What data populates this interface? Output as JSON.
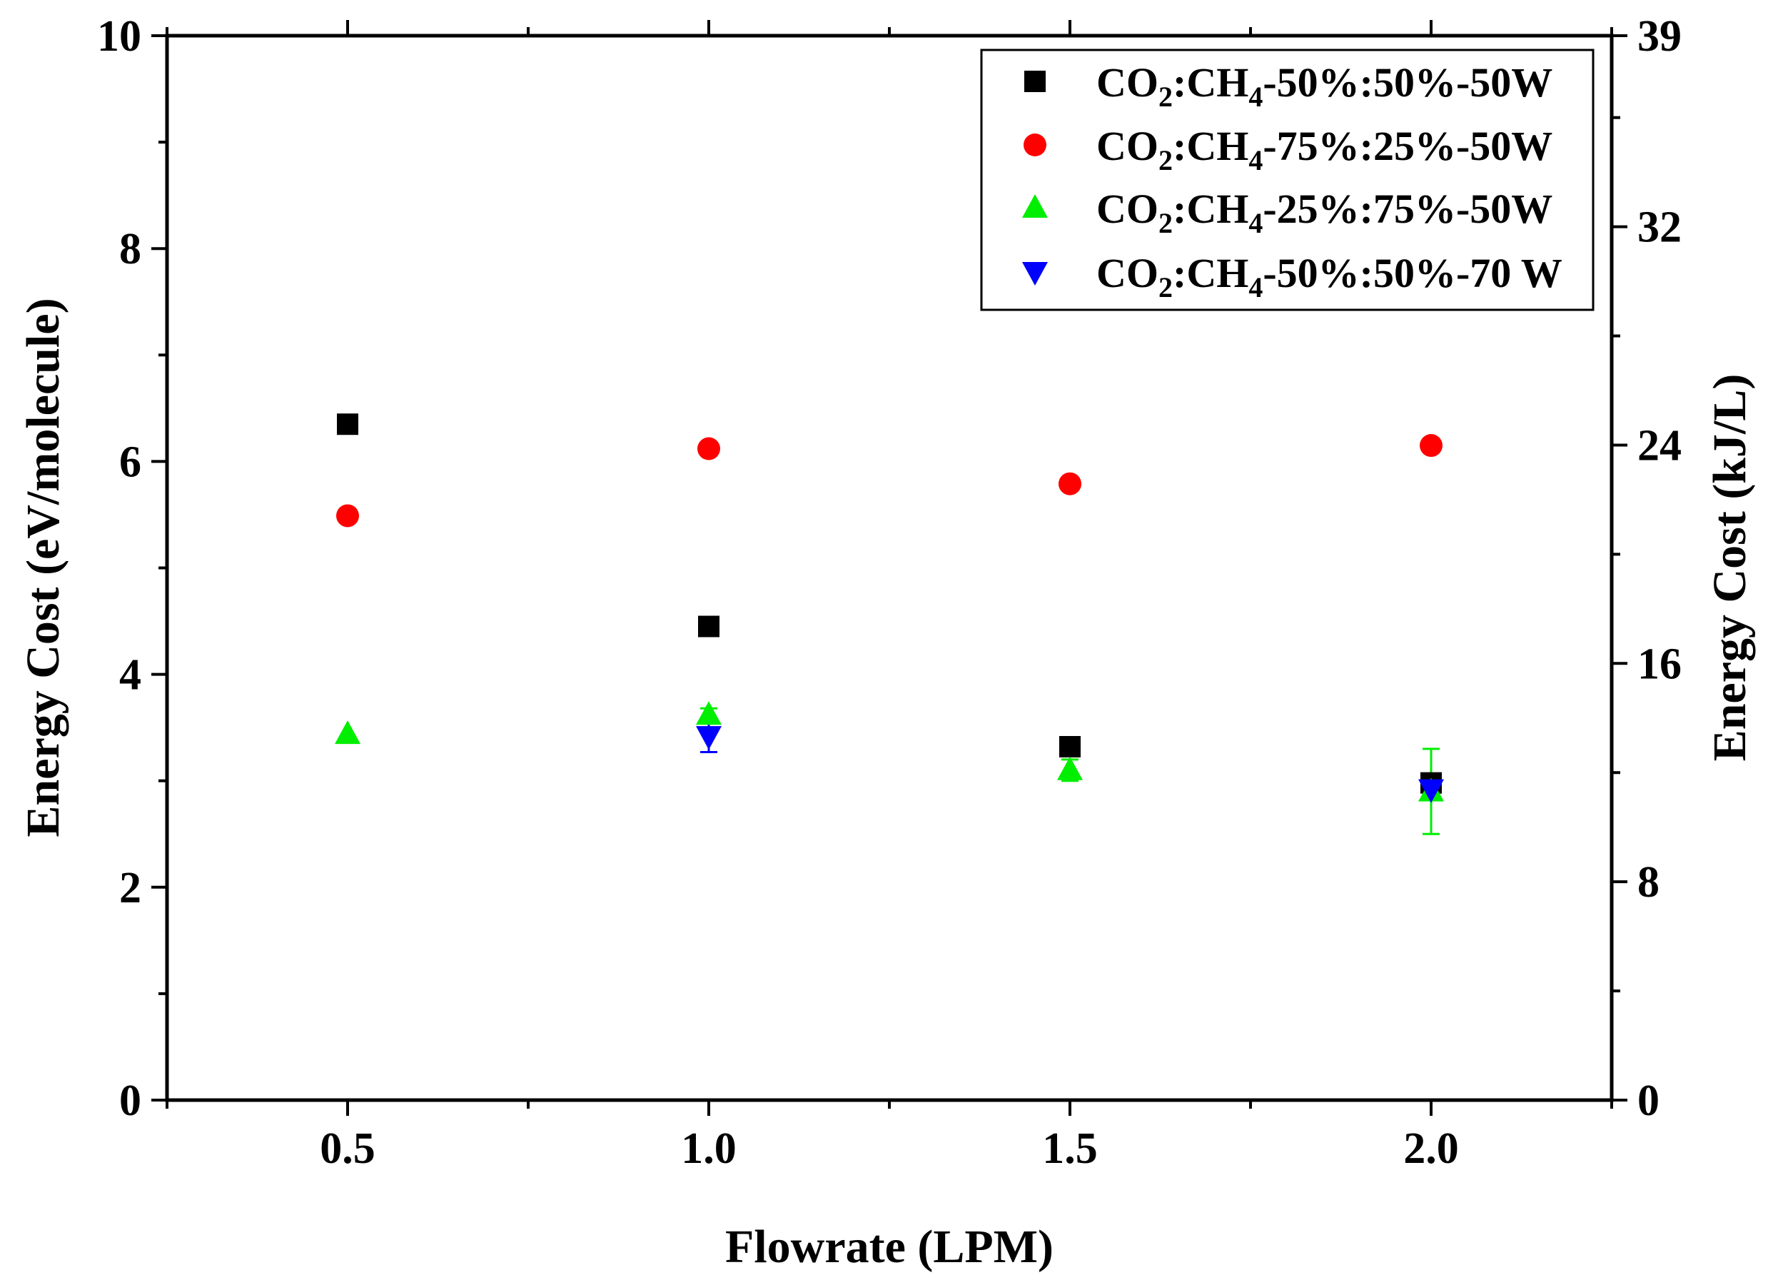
{
  "chart_data": {
    "type": "scatter",
    "xlabel": "Flowrate (LPM)",
    "ylabel": "Energy Cost (eV/molecule)",
    "y2label": "Energy Cost (kJ/L)",
    "xlim": [
      0.25,
      2.25
    ],
    "ylim": [
      0,
      10
    ],
    "y2lim": [
      0,
      39
    ],
    "x_ticks": [
      "0.5",
      "1.0",
      "1.5",
      "2.0"
    ],
    "x_tick_values": [
      0.5,
      1.0,
      1.5,
      2.0
    ],
    "y_ticks": [
      "0",
      "2",
      "4",
      "6",
      "8",
      "10"
    ],
    "y_tick_values": [
      0,
      2,
      4,
      6,
      8,
      10
    ],
    "y2_ticks": [
      "0",
      "8",
      "16",
      "24",
      "32",
      "39"
    ],
    "y2_tick_values": [
      0,
      8,
      16,
      24,
      32,
      39
    ],
    "legend_position": "top-right",
    "series": [
      {
        "name_main": "CO",
        "name_sub1": "2",
        "name_mid": ":CH",
        "name_sub2": "4",
        "name_tail": "-50%:50%-50W",
        "marker": "square",
        "color": "#000000",
        "x": [
          0.5,
          1.0,
          1.5,
          2.0
        ],
        "y": [
          6.35,
          4.45,
          3.32,
          2.98
        ],
        "err": [
          0,
          0,
          0,
          0
        ]
      },
      {
        "name_main": "CO",
        "name_sub1": "2",
        "name_mid": ":CH",
        "name_sub2": "4",
        "name_tail": "-75%:25%-50W",
        "marker": "circle",
        "color": "#ff0000",
        "x": [
          0.5,
          1.0,
          1.5,
          2.0
        ],
        "y": [
          5.49,
          6.12,
          5.79,
          6.15
        ],
        "err": [
          0,
          0,
          0,
          0
        ]
      },
      {
        "name_main": "CO",
        "name_sub1": "2",
        "name_mid": ":CH",
        "name_sub2": "4",
        "name_tail": "-25%:75%-50W",
        "marker": "triangle-up",
        "color": "#00ee00",
        "x": [
          0.5,
          1.0,
          1.5,
          2.0
        ],
        "y": [
          3.44,
          3.62,
          3.1,
          2.9
        ],
        "err": [
          0,
          0.06,
          0.1,
          0.4
        ]
      },
      {
        "name_main": "CO",
        "name_sub1": "2",
        "name_mid": ":CH",
        "name_sub2": "4",
        "name_tail": "-50%:50%-70 W",
        "marker": "triangle-down",
        "color": "#0000ff",
        "x": [
          1.0,
          2.0
        ],
        "y": [
          3.42,
          2.92
        ],
        "err": [
          0.15,
          0.1
        ]
      }
    ]
  }
}
